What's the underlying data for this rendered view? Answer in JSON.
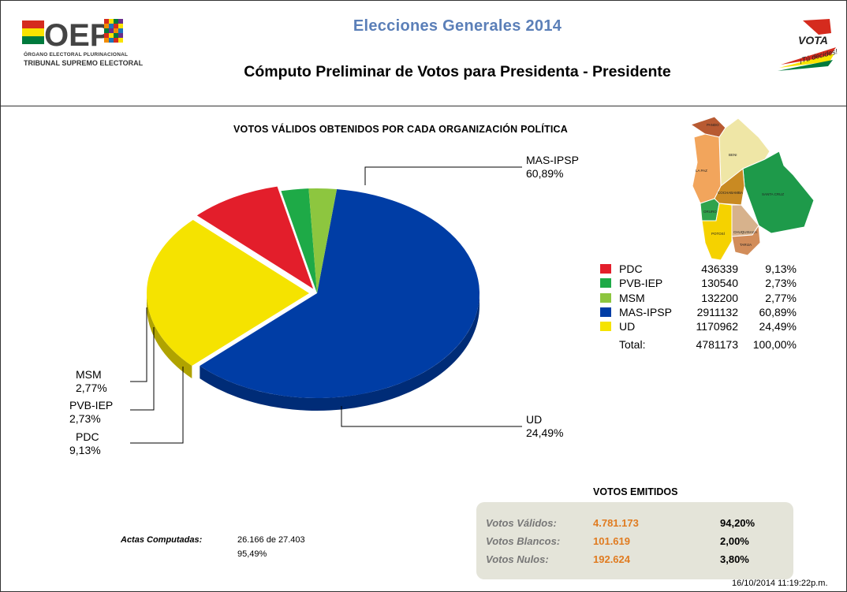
{
  "header": {
    "site_title": "Elecciones Generales  2014",
    "page_title": "Cómputo Preliminar de Votos para  Presidenta - Presidente",
    "logo_left": {
      "mark": "OEP",
      "line1": "ÓRGANO ELECTORAL PLURINACIONAL",
      "line2": "TRIBUNAL SUPREMO ELECTORAL"
    },
    "logo_right": {
      "word": "VOTA",
      "tagline": "¡Tú decides!"
    }
  },
  "chart_data": {
    "type": "pie",
    "title": "VOTOS VÁLIDOS OBTENIDOS POR CADA ORGANIZACIÓN POLÍTICA",
    "series": [
      {
        "name": "PDC",
        "votes": 436339,
        "percent": 9.13,
        "percent_label": "9,13%",
        "color": "#e31e2b"
      },
      {
        "name": "PVB-IEP",
        "votes": 130540,
        "percent": 2.73,
        "percent_label": "2,73%",
        "color": "#1eaa47"
      },
      {
        "name": "MSM",
        "votes": 132200,
        "percent": 2.77,
        "percent_label": "2,77%",
        "color": "#8dc63f"
      },
      {
        "name": "MAS-IPSP",
        "votes": 2911132,
        "percent": 60.89,
        "percent_label": "60,89%",
        "color": "#003da5"
      },
      {
        "name": "UD",
        "votes": 1170962,
        "percent": 24.49,
        "percent_label": "24,49%",
        "color": "#f5e300"
      }
    ],
    "total": {
      "label": "Total:",
      "votes": 4781173,
      "percent_label": "100,00%"
    }
  },
  "votos_emitidos": {
    "title": "VOTOS EMITIDOS",
    "rows": [
      {
        "label": "Votos Válidos:",
        "value": "4.781.173",
        "percent": "94,20%"
      },
      {
        "label": "Votos Blancos:",
        "value": "101.619",
        "percent": "2,00%"
      },
      {
        "label": "Votos Nulos:",
        "value": "192.624",
        "percent": "3,80%"
      }
    ]
  },
  "actas": {
    "label": "Actas Computadas:",
    "count": "26.166 de 27.403",
    "percent": "95,49%"
  },
  "timestamp": "16/10/2014 11:19:22p.m.",
  "map": {
    "departments": [
      "PANDO",
      "BENI",
      "LA PAZ",
      "COCHABAMBA",
      "SANTA CRUZ",
      "ORURO",
      "POTOSÍ",
      "CHUQUISACA",
      "TARIJA"
    ]
  }
}
